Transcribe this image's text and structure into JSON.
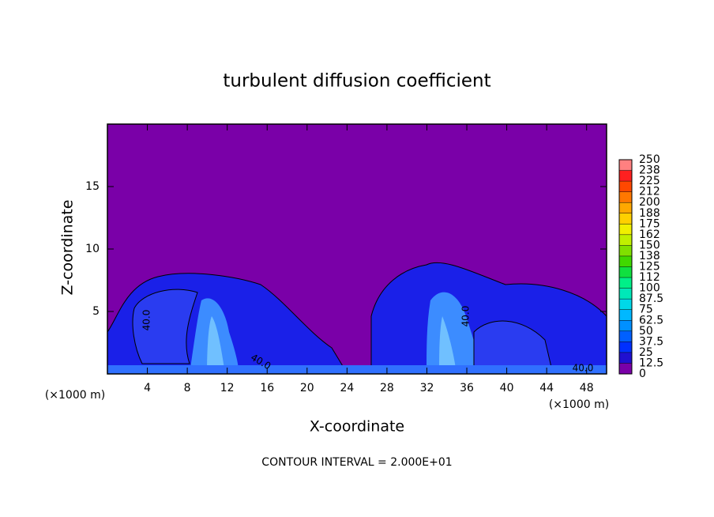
{
  "chart_data": {
    "type": "contour",
    "title": "turbulent diffusion coefficient",
    "x_label": "X-coordinate",
    "y_label": "Z-coordinate",
    "x_unit_left": "(×1000 m)",
    "x_unit_right": "(×1000 m)",
    "footer": "CONTOUR INTERVAL = 2.000E+01",
    "xlim": [
      0,
      50
    ],
    "ylim": [
      0,
      20
    ],
    "xticks": [
      4,
      8,
      12,
      16,
      20,
      24,
      28,
      32,
      36,
      40,
      44,
      48
    ],
    "yticks": [
      5,
      10,
      15
    ],
    "contour_labels": [
      "40.0",
      "40.0",
      "40.0",
      "40.0"
    ],
    "colorbar": {
      "levels": [
        0,
        12.5,
        25,
        37.5,
        50,
        62.5,
        75,
        87.5,
        100,
        {
          "value": 112.5,
          "label": "112"
        },
        125,
        {
          "value": 137.5,
          "label": "138"
        },
        150,
        {
          "value": 162.5,
          "label": "162"
        },
        175,
        {
          "value": 187.5,
          "label": "188"
        },
        200,
        {
          "value": 212.5,
          "label": "212"
        },
        225,
        {
          "value": 237.5,
          "label": "238"
        },
        250
      ],
      "colors": [
        "#7a00a8",
        "#2010d0",
        "#0030ff",
        "#0060ff",
        "#0090ff",
        "#00b8ff",
        "#00d8e8",
        "#00e8b8",
        "#00f088",
        "#10e040",
        "#40d800",
        "#80e000",
        "#c0f000",
        "#f0f000",
        "#ffd000",
        "#ffa800",
        "#ff7800",
        "#ff4800",
        "#ff2020",
        "#ff8080"
      ]
    }
  }
}
